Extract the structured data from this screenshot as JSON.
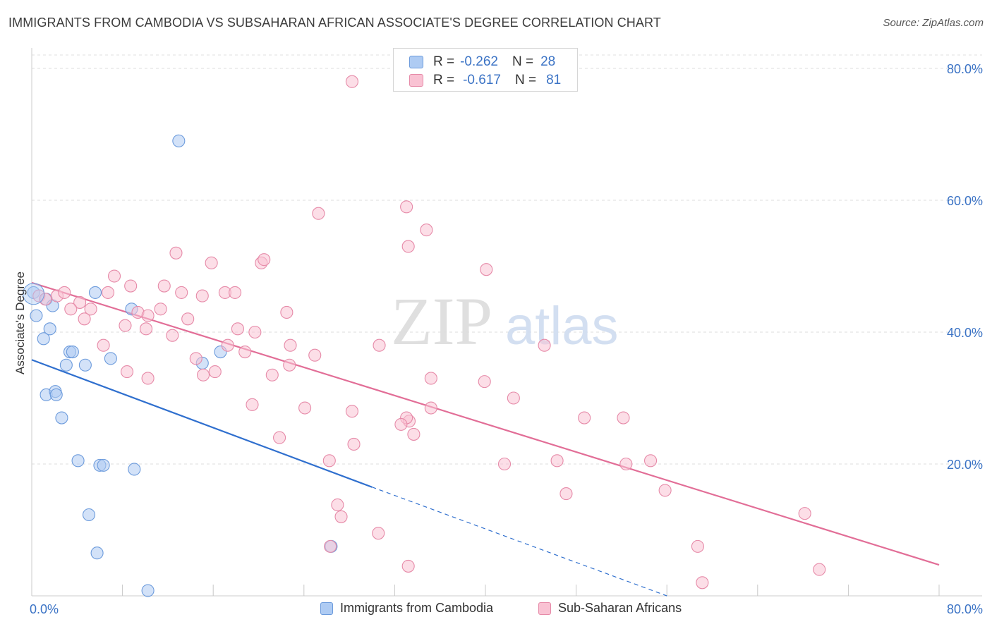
{
  "title": "IMMIGRANTS FROM CAMBODIA VS SUBSAHARAN AFRICAN ASSOCIATE'S DEGREE CORRELATION CHART",
  "source": "Source: ZipAtlas.com",
  "watermark": {
    "zip": "ZIP",
    "atlas": "atlas"
  },
  "stats": [
    {
      "r_label": "R =",
      "r_value": "-0.262",
      "n_label": "N =",
      "n_value": "28",
      "color": "#aecbf3",
      "stroke": "#6c9bdc"
    },
    {
      "r_label": "R =",
      "r_value": "-0.617",
      "n_label": "N =",
      "n_value": "81",
      "color": "#f9c2d3",
      "stroke": "#e68aa8"
    }
  ],
  "chart_data": {
    "type": "scatter",
    "xlabel": "",
    "ylabel": "Associate's Degree",
    "xlim": [
      0,
      100
    ],
    "ylim": [
      0,
      80
    ],
    "x_tick_labels": [
      "0.0%",
      "80.0%"
    ],
    "y_ticks": [
      20,
      40,
      60,
      80
    ],
    "y_tick_labels": [
      "20.0%",
      "40.0%",
      "60.0%",
      "80.0%"
    ],
    "grid": true,
    "legend_position": "bottom",
    "series": [
      {
        "name": "Immigrants from Cambodia",
        "color": "#aecbf3",
        "stroke": "#6c9bdc",
        "line_color": "#2f6fce",
        "trend": {
          "x0": 0,
          "y0": 35.8,
          "x1": 37.5,
          "y1": 16.5,
          "dash_to_x": 70,
          "dash_to_y": 0
        },
        "points": [
          [
            0.2,
            46.0
          ],
          [
            0.5,
            42.5
          ],
          [
            1.6,
            45.0
          ],
          [
            2.3,
            44.0
          ],
          [
            1.3,
            39.0
          ],
          [
            2.0,
            40.5
          ],
          [
            4.2,
            37.0
          ],
          [
            4.5,
            37.0
          ],
          [
            3.8,
            35.0
          ],
          [
            5.9,
            35.0
          ],
          [
            8.7,
            36.0
          ],
          [
            1.6,
            30.5
          ],
          [
            2.6,
            31.0
          ],
          [
            2.7,
            30.5
          ],
          [
            3.3,
            27.0
          ],
          [
            11.0,
            43.5
          ],
          [
            7.0,
            46.0
          ],
          [
            5.1,
            20.5
          ],
          [
            7.5,
            19.8
          ],
          [
            7.9,
            19.8
          ],
          [
            11.3,
            19.2
          ],
          [
            6.3,
            12.3
          ],
          [
            7.2,
            6.5
          ],
          [
            16.2,
            69.0
          ],
          [
            20.8,
            37.0
          ],
          [
            18.8,
            35.3
          ],
          [
            33.0,
            7.5
          ],
          [
            12.8,
            0.8
          ]
        ]
      },
      {
        "name": "Sub-Saharan Africans",
        "color": "#f9c2d3",
        "stroke": "#e68aa8",
        "line_color": "#e26e97",
        "trend": {
          "x0": 0,
          "y0": 47.5,
          "x1": 100,
          "y1": 4.7
        },
        "points": [
          [
            0.8,
            45.5
          ],
          [
            1.5,
            45.0
          ],
          [
            2.8,
            45.5
          ],
          [
            3.6,
            46.0
          ],
          [
            5.3,
            44.5
          ],
          [
            6.5,
            43.5
          ],
          [
            4.3,
            43.5
          ],
          [
            5.8,
            42.0
          ],
          [
            8.4,
            46.0
          ],
          [
            9.1,
            48.5
          ],
          [
            10.9,
            47.0
          ],
          [
            11.7,
            43.0
          ],
          [
            12.8,
            42.5
          ],
          [
            14.2,
            43.5
          ],
          [
            14.6,
            47.0
          ],
          [
            15.9,
            52.0
          ],
          [
            16.5,
            46.0
          ],
          [
            17.2,
            42.0
          ],
          [
            18.8,
            45.5
          ],
          [
            19.8,
            50.5
          ],
          [
            21.3,
            46.0
          ],
          [
            22.4,
            46.0
          ],
          [
            25.3,
            50.5
          ],
          [
            25.6,
            51.0
          ],
          [
            28.1,
            43.0
          ],
          [
            10.3,
            41.0
          ],
          [
            12.6,
            40.5
          ],
          [
            15.5,
            39.5
          ],
          [
            7.9,
            38.0
          ],
          [
            21.6,
            38.0
          ],
          [
            23.5,
            37.0
          ],
          [
            22.7,
            40.5
          ],
          [
            24.6,
            40.0
          ],
          [
            28.5,
            38.0
          ],
          [
            18.1,
            36.0
          ],
          [
            20.2,
            34.0
          ],
          [
            18.9,
            33.5
          ],
          [
            26.5,
            33.5
          ],
          [
            10.5,
            34.0
          ],
          [
            12.8,
            33.0
          ],
          [
            28.4,
            35.0
          ],
          [
            31.6,
            58.0
          ],
          [
            35.3,
            78.0
          ],
          [
            38.3,
            38.0
          ],
          [
            41.5,
            53.0
          ],
          [
            41.3,
            59.0
          ],
          [
            43.5,
            55.5
          ],
          [
            50.1,
            49.5
          ],
          [
            56.5,
            38.0
          ],
          [
            44.0,
            33.0
          ],
          [
            49.9,
            32.5
          ],
          [
            53.1,
            30.0
          ],
          [
            24.3,
            29.0
          ],
          [
            30.1,
            28.5
          ],
          [
            35.3,
            28.0
          ],
          [
            41.6,
            26.5
          ],
          [
            41.3,
            27.0
          ],
          [
            40.7,
            26.0
          ],
          [
            42.1,
            24.5
          ],
          [
            44.0,
            28.5
          ],
          [
            27.3,
            24.0
          ],
          [
            35.5,
            23.0
          ],
          [
            32.8,
            20.5
          ],
          [
            52.1,
            20.0
          ],
          [
            57.9,
            20.5
          ],
          [
            58.9,
            15.5
          ],
          [
            65.2,
            27.0
          ],
          [
            65.5,
            20.0
          ],
          [
            69.8,
            16.0
          ],
          [
            33.7,
            13.8
          ],
          [
            34.1,
            12.0
          ],
          [
            38.2,
            9.5
          ],
          [
            32.9,
            7.5
          ],
          [
            41.5,
            4.5
          ],
          [
            73.4,
            7.5
          ],
          [
            73.9,
            2.0
          ],
          [
            85.2,
            12.5
          ],
          [
            86.8,
            4.0
          ],
          [
            60.9,
            27.0
          ],
          [
            68.2,
            20.5
          ],
          [
            31.2,
            36.5
          ]
        ]
      }
    ]
  }
}
